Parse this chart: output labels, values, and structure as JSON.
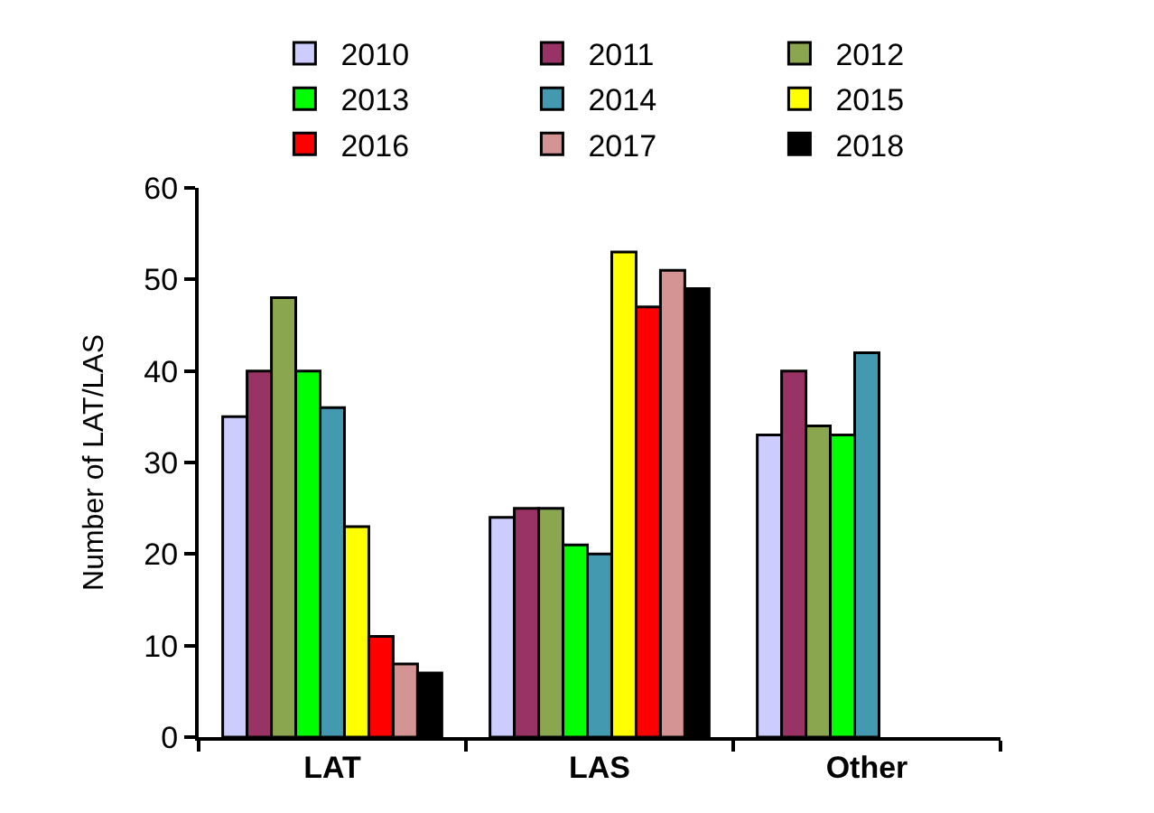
{
  "chart_data": {
    "type": "bar",
    "ylabel": "Number of LAT/LAS",
    "categories": [
      "LAT",
      "LAS",
      "Other"
    ],
    "series": [
      {
        "name": "2010",
        "color": "#ccccff",
        "values": [
          35,
          24,
          33
        ]
      },
      {
        "name": "2011",
        "color": "#993366",
        "values": [
          40,
          25,
          40
        ]
      },
      {
        "name": "2012",
        "color": "#8aa64e",
        "values": [
          48,
          25,
          34
        ]
      },
      {
        "name": "2013",
        "color": "#00ff00",
        "values": [
          40,
          21,
          33
        ]
      },
      {
        "name": "2014",
        "color": "#4299b0",
        "values": [
          36,
          20,
          42
        ]
      },
      {
        "name": "2015",
        "color": "#ffff00",
        "values": [
          23,
          53,
          null
        ]
      },
      {
        "name": "2016",
        "color": "#ff0000",
        "values": [
          11,
          47,
          null
        ]
      },
      {
        "name": "2017",
        "color": "#d49494",
        "values": [
          8,
          51,
          null
        ]
      },
      {
        "name": "2018",
        "color": "#000000",
        "values": [
          7,
          49,
          null
        ]
      }
    ],
    "ylim": [
      0,
      60
    ],
    "yticks": [
      0,
      10,
      20,
      30,
      40,
      50,
      60
    ],
    "grid": false,
    "legend": "top"
  }
}
